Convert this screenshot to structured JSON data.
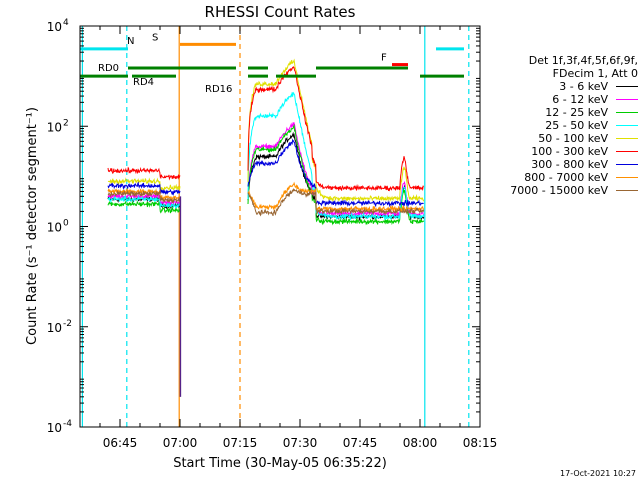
{
  "chart_data": {
    "type": "line",
    "title": "RHESSI Count Rates",
    "xlabel": "Start Time (30-May-05 06:35:22)",
    "ylabel": "Count Rate (s⁻¹ detector segment⁻¹)",
    "yscale": "log",
    "ylim": [
      0.0001,
      10000
    ],
    "xlim_minutes": [
      35,
      135
    ],
    "x_ticks": [
      {
        "label": "06:45",
        "minute": 45
      },
      {
        "label": "07:00",
        "minute": 60
      },
      {
        "label": "07:15",
        "minute": 75
      },
      {
        "label": "07:30",
        "minute": 90
      },
      {
        "label": "07:45",
        "minute": 105
      },
      {
        "label": "08:00",
        "minute": 120
      },
      {
        "label": "08:15",
        "minute": 135
      }
    ],
    "y_ticks": [
      {
        "base": "10",
        "exp": "4",
        "value": 10000
      },
      {
        "base": "10",
        "exp": "2",
        "value": 100
      },
      {
        "base": "10",
        "exp": "0",
        "value": 1
      },
      {
        "base": "10",
        "exp": "-2",
        "value": 0.01
      },
      {
        "base": "10",
        "exp": "-4",
        "value": 0.0001
      }
    ],
    "series": [
      {
        "name": "3 - 6 keV",
        "color": "#000000",
        "base": 3.5,
        "peak_factor": 20
      },
      {
        "name": "6 - 12 keV",
        "color": "#ff00ff",
        "base": 4.0,
        "peak_factor": 28
      },
      {
        "name": "12 - 25 keV",
        "color": "#00cc00",
        "base": 2.8,
        "peak_factor": 35
      },
      {
        "name": "25 - 50 keV",
        "color": "#00ffff",
        "base": 3.5,
        "peak_factor": 130
      },
      {
        "name": "50 - 100 keV",
        "color": "#e0e000",
        "base": 8.0,
        "peak_factor": 250
      },
      {
        "name": "100 - 300 keV",
        "color": "#ff0000",
        "base": 13.0,
        "peak_factor": 120
      },
      {
        "name": "300 - 800 keV",
        "color": "#0000dd",
        "base": 6.5,
        "peak_factor": 8
      },
      {
        "name": "800 - 7000 keV",
        "color": "#ff9000",
        "base": 5.0,
        "peak_factor": 1.4
      },
      {
        "name": "7000 - 15000 keV",
        "color": "#996633",
        "base": 4.5,
        "peak_factor": 1.2
      }
    ],
    "legend_header": [
      "Det 1f,3f,4f,5f,6f,9f,",
      "FDecim 1, Att 0"
    ],
    "flags": [
      {
        "label": "N",
        "color": "#00e5ee",
        "level": 3500,
        "segments": [
          [
            35,
            47
          ],
          [
            124,
            131
          ]
        ]
      },
      {
        "label": "S",
        "color": "#ff8c00",
        "level": 4300,
        "segments": [
          [
            60,
            74
          ]
        ]
      },
      {
        "label": "F",
        "color": "#ff0000",
        "level": 1700,
        "segments": [
          [
            113,
            117
          ]
        ]
      },
      {
        "label": "RD0",
        "color": "#008000",
        "level": 1450,
        "segments": [
          [
            47,
            74
          ],
          [
            77,
            82
          ],
          [
            94,
            117
          ]
        ]
      },
      {
        "label": "RD4",
        "color": "#008000",
        "level": 1000,
        "segments": [
          [
            35,
            47
          ],
          [
            48,
            59
          ],
          [
            120,
            131
          ]
        ]
      },
      {
        "label": "RD16",
        "color": "#008000",
        "level": 1000,
        "segments": [
          [
            77,
            82
          ],
          [
            84,
            94
          ]
        ]
      }
    ],
    "night_boundaries": [
      {
        "minute": 35.6,
        "color": "#00e5ee",
        "style": "solid"
      },
      {
        "minute": 46.7,
        "color": "#00e5ee",
        "style": "dashed"
      },
      {
        "minute": 121.2,
        "color": "#00e5ee",
        "style": "solid"
      },
      {
        "minute": 132.2,
        "color": "#00e5ee",
        "style": "dashed"
      },
      {
        "minute": 59.8,
        "color": "#ff8c00",
        "style": "solid"
      },
      {
        "minute": 75.0,
        "color": "#ff8c00",
        "style": "dashed"
      }
    ],
    "data_segments": [
      [
        42,
        60
      ],
      [
        77,
        121
      ]
    ],
    "flare_peak_minute": 88.5
  },
  "footer": {
    "date": "17-Oct-2021 10:27"
  }
}
